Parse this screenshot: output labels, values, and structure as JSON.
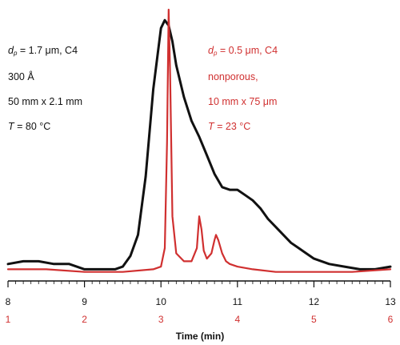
{
  "chart_data": {
    "type": "line",
    "xlabel": "Time (min)",
    "x_black_ticks": [
      "8",
      "9",
      "10",
      "11",
      "12",
      "13"
    ],
    "x_red_ticks": [
      "1",
      "2",
      "3",
      "4",
      "5",
      "6"
    ],
    "xlim_black": [
      8,
      13
    ],
    "xlim_red": [
      1,
      6
    ],
    "ylim": [
      0,
      1
    ],
    "grid": false,
    "colors": {
      "black": "#111111",
      "red": "#d03030"
    },
    "series": [
      {
        "color": "#111111",
        "x_axis": "black",
        "x": [
          8.0,
          8.2,
          8.4,
          8.6,
          8.8,
          9.0,
          9.2,
          9.4,
          9.5,
          9.6,
          9.7,
          9.8,
          9.9,
          10.0,
          10.05,
          10.1,
          10.15,
          10.2,
          10.3,
          10.4,
          10.5,
          10.6,
          10.7,
          10.8,
          10.9,
          11.0,
          11.1,
          11.2,
          11.3,
          11.4,
          11.5,
          11.6,
          11.7,
          11.8,
          11.9,
          12.0,
          12.2,
          12.4,
          12.6,
          12.8,
          13.0
        ],
        "y": [
          0.04,
          0.05,
          0.05,
          0.04,
          0.04,
          0.02,
          0.02,
          0.02,
          0.03,
          0.07,
          0.15,
          0.37,
          0.7,
          0.93,
          0.96,
          0.94,
          0.88,
          0.79,
          0.67,
          0.58,
          0.52,
          0.45,
          0.38,
          0.33,
          0.32,
          0.32,
          0.3,
          0.28,
          0.25,
          0.21,
          0.18,
          0.15,
          0.12,
          0.1,
          0.08,
          0.06,
          0.04,
          0.03,
          0.02,
          0.02,
          0.03
        ]
      },
      {
        "color": "#d03030",
        "x_axis": "black",
        "x": [
          8.0,
          8.5,
          9.0,
          9.5,
          9.9,
          10.0,
          10.05,
          10.08,
          10.1,
          10.12,
          10.15,
          10.2,
          10.3,
          10.4,
          10.47,
          10.5,
          10.53,
          10.56,
          10.6,
          10.66,
          10.7,
          10.72,
          10.75,
          10.8,
          10.85,
          10.9,
          11.0,
          11.2,
          11.5,
          12.0,
          12.5,
          13.0
        ],
        "y": [
          0.02,
          0.02,
          0.01,
          0.01,
          0.02,
          0.03,
          0.1,
          0.5,
          1.0,
          0.75,
          0.22,
          0.08,
          0.05,
          0.05,
          0.1,
          0.22,
          0.17,
          0.09,
          0.06,
          0.08,
          0.13,
          0.15,
          0.13,
          0.08,
          0.05,
          0.04,
          0.03,
          0.02,
          0.01,
          0.01,
          0.01,
          0.02
        ]
      }
    ]
  },
  "annotations": {
    "black": {
      "line1_symbol": "d",
      "line1_sub": "p",
      "line1_rest": " = 1.7 μm, C4",
      "line2": "300 Å",
      "line3": "50 mm x 2.1 mm",
      "line4_symbol": "T",
      "line4_rest": " = 80 °C"
    },
    "red": {
      "line1_symbol": "d",
      "line1_sub": "p",
      "line1_rest": " = 0.5 μm, C4",
      "line2": "nonporous,",
      "line3": "10 mm x 75 μm",
      "line4_symbol": "T",
      "line4_rest": " = 23 °C"
    }
  }
}
